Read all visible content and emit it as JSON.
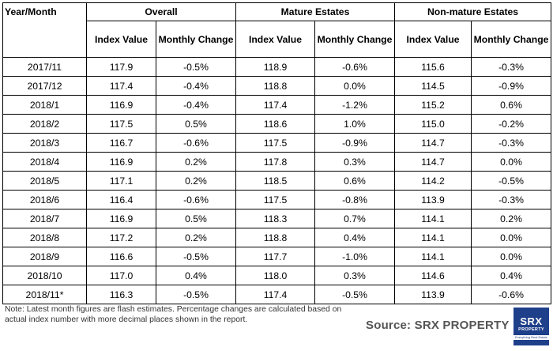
{
  "headers": {
    "year_month": "Year/Month",
    "groups": [
      "Overall",
      "Mature Estates",
      "Non-mature Estates"
    ],
    "sub": [
      "Index Value",
      "Monthly Change",
      "Index Value",
      "Monthly Change",
      "Index Value",
      "Monthly Change"
    ]
  },
  "rows": [
    [
      "2017/11",
      "117.9",
      "-0.5%",
      "118.9",
      "-0.6%",
      "115.6",
      "-0.3%"
    ],
    [
      "2017/12",
      "117.4",
      "-0.4%",
      "118.8",
      "0.0%",
      "114.5",
      "-0.9%"
    ],
    [
      "2018/1",
      "116.9",
      "-0.4%",
      "117.4",
      "-1.2%",
      "115.2",
      "0.6%"
    ],
    [
      "2018/2",
      "117.5",
      "0.5%",
      "118.6",
      "1.0%",
      "115.0",
      "-0.2%"
    ],
    [
      "2018/3",
      "116.7",
      "-0.6%",
      "117.5",
      "-0.9%",
      "114.7",
      "-0.3%"
    ],
    [
      "2018/4",
      "116.9",
      "0.2%",
      "117.8",
      "0.3%",
      "114.7",
      "0.0%"
    ],
    [
      "2018/5",
      "117.1",
      "0.2%",
      "118.5",
      "0.6%",
      "114.2",
      "-0.5%"
    ],
    [
      "2018/6",
      "116.4",
      "-0.6%",
      "117.5",
      "-0.8%",
      "113.9",
      "-0.3%"
    ],
    [
      "2018/7",
      "116.9",
      "0.5%",
      "118.3",
      "0.7%",
      "114.1",
      "0.2%"
    ],
    [
      "2018/8",
      "117.2",
      "0.2%",
      "118.8",
      "0.4%",
      "114.1",
      "0.0%"
    ],
    [
      "2018/9",
      "116.6",
      "-0.5%",
      "117.7",
      "-1.0%",
      "114.1",
      "0.0%"
    ],
    [
      "2018/10",
      "117.0",
      "0.4%",
      "118.0",
      "0.3%",
      "114.6",
      "0.4%"
    ],
    [
      "2018/11*",
      "116.3",
      "-0.5%",
      "117.4",
      "-0.5%",
      "113.9",
      "-0.6%"
    ]
  ],
  "note": "Note: Latest month figures are flash estimates. Percentage changes are calculated based on actual index number with more decimal places shown in the report.",
  "source": "Source:  SRX PROPERTY",
  "logo": {
    "main": "SRX",
    "sub": "PROPERTY",
    "tagline": "Everything Real Estate"
  }
}
